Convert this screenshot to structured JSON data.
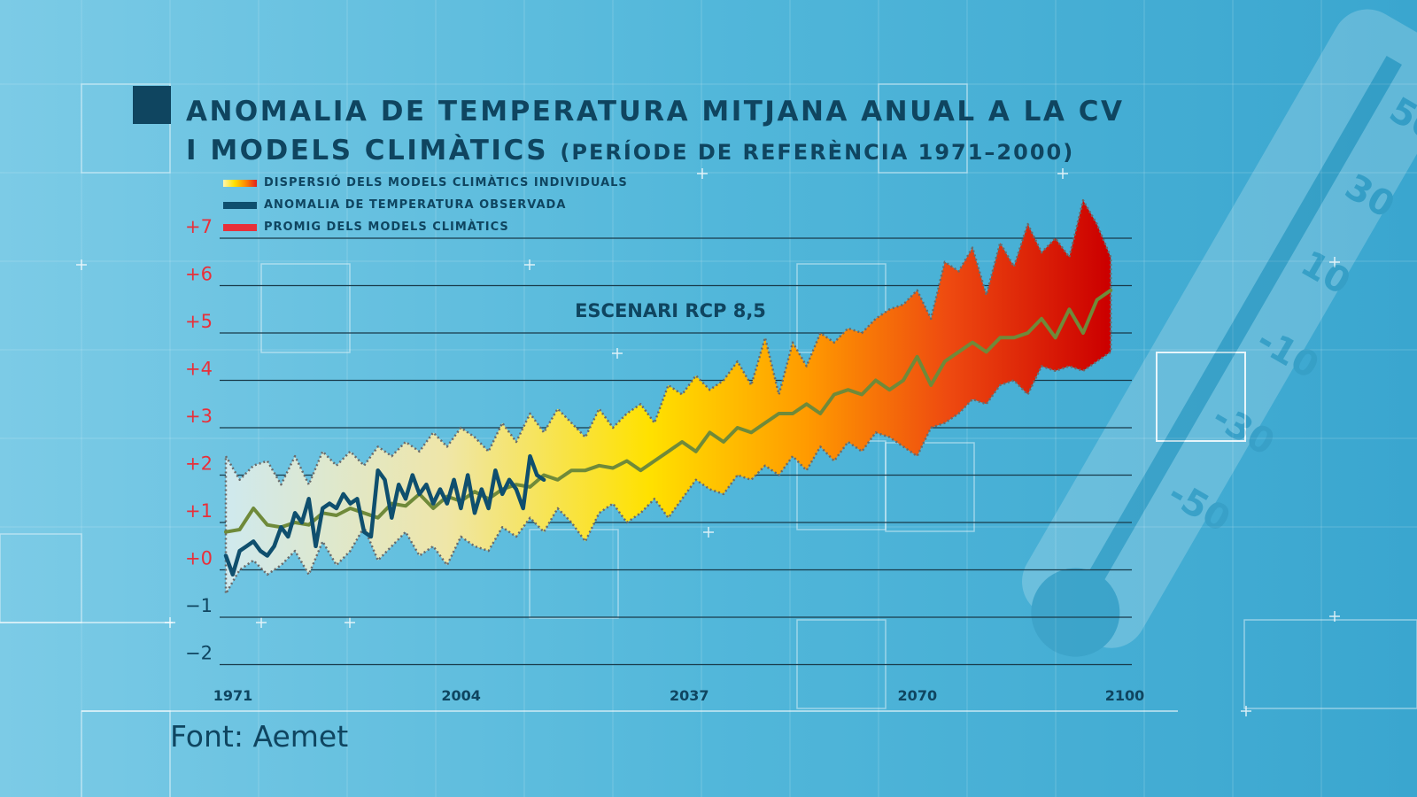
{
  "title": {
    "line1": "ANOMALIA DE TEMPERATURA MITJANA ANUAL A LA CV",
    "line2": "I MODELS CLIMÀTICS",
    "subtitle": "(PERÍODE DE REFERÈNCIA 1971–2000)"
  },
  "source": "Font: Aemet",
  "colors": {
    "background": "#4fb6d8",
    "text_dark": "#0f4560",
    "observed": "#0f4f6e",
    "model_mean": "#6f8a3a",
    "tick_red": "#e8303a",
    "spread_start": "#cfe9ee",
    "spread_mid": "#ffe100",
    "spread_end": "#cc0000"
  },
  "legend": [
    {
      "label": "DISPERSIÓ DELS MODELS CLIMÀTICS INDIVIDUALS",
      "icon": "gradient-swatch"
    },
    {
      "label": "ANOMALIA DE TEMPERATURA OBSERVADA",
      "icon": "dark-blue-swatch"
    },
    {
      "label": "PROMIG DELS MODELS CLIMÀTICS",
      "icon": "red-swatch"
    }
  ],
  "chart_data": {
    "type": "line",
    "annotation": "ESCENARI RCP 8,5",
    "x_tick_labels": [
      "1971",
      "2004",
      "2037",
      "2070",
      "2100"
    ],
    "x_ticks": [
      1971,
      2004,
      2037,
      2070,
      2100
    ],
    "y_tick_labels": [
      "+7",
      "+6",
      "+5",
      "+4",
      "+3",
      "+2",
      "+1",
      "+0",
      "−1",
      "−2"
    ],
    "y_ticks": [
      7,
      6,
      5,
      4,
      3,
      2,
      1,
      0,
      -1,
      -2
    ],
    "xlim": [
      1971,
      2100
    ],
    "ylim": [
      -2,
      7
    ],
    "grid": true,
    "legend_position": "top-left",
    "series": [
      {
        "name": "ANOMALIA DE TEMPERATURA OBSERVADA",
        "x": [
          1971,
          1972,
          1973,
          1974,
          1975,
          1976,
          1977,
          1978,
          1979,
          1980,
          1981,
          1982,
          1983,
          1984,
          1985,
          1986,
          1987,
          1988,
          1989,
          1990,
          1991,
          1992,
          1993,
          1994,
          1995,
          1996,
          1997,
          1998,
          1999,
          2000,
          2001,
          2002,
          2003,
          2004,
          2005,
          2006,
          2007,
          2008,
          2009,
          2010,
          2011,
          2012,
          2013,
          2014,
          2015,
          2016,
          2017
        ],
        "y": [
          0.3,
          -0.1,
          0.4,
          0.5,
          0.6,
          0.4,
          0.3,
          0.5,
          0.9,
          0.7,
          1.2,
          1.0,
          1.5,
          0.5,
          1.3,
          1.4,
          1.3,
          1.6,
          1.4,
          1.5,
          0.8,
          0.7,
          2.1,
          1.9,
          1.1,
          1.8,
          1.5,
          2.0,
          1.6,
          1.8,
          1.4,
          1.7,
          1.4,
          1.9,
          1.3,
          2.0,
          1.2,
          1.7,
          1.3,
          2.1,
          1.6,
          1.9,
          1.7,
          1.3,
          2.4,
          2.0,
          1.9
        ]
      },
      {
        "name": "PROMIG DELS MODELS CLIMÀTICS",
        "x": [
          1971,
          1973,
          1975,
          1977,
          1979,
          1981,
          1983,
          1985,
          1987,
          1989,
          1991,
          1993,
          1995,
          1997,
          1999,
          2001,
          2003,
          2005,
          2007,
          2009,
          2011,
          2013,
          2015,
          2017,
          2019,
          2021,
          2023,
          2025,
          2027,
          2029,
          2031,
          2033,
          2035,
          2037,
          2039,
          2041,
          2043,
          2045,
          2047,
          2049,
          2051,
          2053,
          2055,
          2057,
          2059,
          2061,
          2063,
          2065,
          2067,
          2069,
          2071,
          2073,
          2075,
          2077,
          2079,
          2081,
          2083,
          2085,
          2087,
          2089,
          2091,
          2093,
          2095,
          2097,
          2099
        ],
        "y": [
          0.8,
          0.85,
          1.3,
          0.95,
          0.9,
          1.0,
          0.95,
          1.2,
          1.15,
          1.3,
          1.2,
          1.1,
          1.4,
          1.35,
          1.6,
          1.3,
          1.55,
          1.45,
          1.65,
          1.5,
          1.7,
          1.8,
          1.75,
          2.0,
          1.9,
          2.1,
          2.1,
          2.2,
          2.15,
          2.3,
          2.1,
          2.3,
          2.5,
          2.7,
          2.5,
          2.9,
          2.7,
          3.0,
          2.9,
          3.1,
          3.3,
          3.3,
          3.5,
          3.3,
          3.7,
          3.8,
          3.7,
          4.0,
          3.8,
          4.0,
          4.5,
          3.9,
          4.4,
          4.6,
          4.8,
          4.6,
          4.9,
          4.9,
          5.0,
          5.3,
          4.9,
          5.5,
          5.0,
          5.7,
          5.9
        ]
      },
      {
        "name": "DISPERSIÓ DELS MODELS CLIMÀTICS INDIVIDUALS",
        "x": [
          1971,
          1973,
          1975,
          1977,
          1979,
          1981,
          1983,
          1985,
          1987,
          1989,
          1991,
          1993,
          1995,
          1997,
          1999,
          2001,
          2003,
          2005,
          2007,
          2009,
          2011,
          2013,
          2015,
          2017,
          2019,
          2021,
          2023,
          2025,
          2027,
          2029,
          2031,
          2033,
          2035,
          2037,
          2039,
          2041,
          2043,
          2045,
          2047,
          2049,
          2051,
          2053,
          2055,
          2057,
          2059,
          2061,
          2063,
          2065,
          2067,
          2069,
          2071,
          2073,
          2075,
          2077,
          2079,
          2081,
          2083,
          2085,
          2087,
          2089,
          2091,
          2093,
          2095,
          2097,
          2099
        ],
        "low": [
          -0.5,
          0.0,
          0.2,
          -0.1,
          0.1,
          0.4,
          -0.1,
          0.6,
          0.1,
          0.4,
          0.9,
          0.2,
          0.5,
          0.8,
          0.3,
          0.5,
          0.1,
          0.7,
          0.5,
          0.4,
          0.9,
          0.7,
          1.1,
          0.8,
          1.3,
          1.0,
          0.6,
          1.2,
          1.4,
          1.0,
          1.2,
          1.5,
          1.1,
          1.5,
          1.9,
          1.7,
          1.6,
          2.0,
          1.9,
          2.2,
          2.0,
          2.4,
          2.1,
          2.6,
          2.3,
          2.7,
          2.5,
          2.9,
          2.8,
          2.6,
          2.4,
          3.0,
          3.1,
          3.3,
          3.6,
          3.5,
          3.9,
          4.0,
          3.7,
          4.3,
          4.2,
          4.3,
          4.2,
          4.4,
          4.6
        ],
        "high": [
          2.4,
          1.9,
          2.2,
          2.3,
          1.8,
          2.4,
          1.8,
          2.5,
          2.2,
          2.5,
          2.2,
          2.6,
          2.4,
          2.7,
          2.5,
          2.9,
          2.6,
          3.0,
          2.8,
          2.5,
          3.1,
          2.7,
          3.3,
          2.9,
          3.4,
          3.1,
          2.8,
          3.4,
          3.0,
          3.3,
          3.5,
          3.1,
          3.9,
          3.7,
          4.1,
          3.8,
          4.0,
          4.4,
          3.9,
          4.9,
          3.7,
          4.8,
          4.3,
          5.0,
          4.8,
          5.1,
          5.0,
          5.3,
          5.5,
          5.6,
          5.9,
          5.3,
          6.5,
          6.3,
          6.8,
          5.8,
          6.9,
          6.4,
          7.3,
          6.7,
          7.0,
          6.6,
          7.8,
          7.3,
          6.6
        ]
      }
    ]
  }
}
